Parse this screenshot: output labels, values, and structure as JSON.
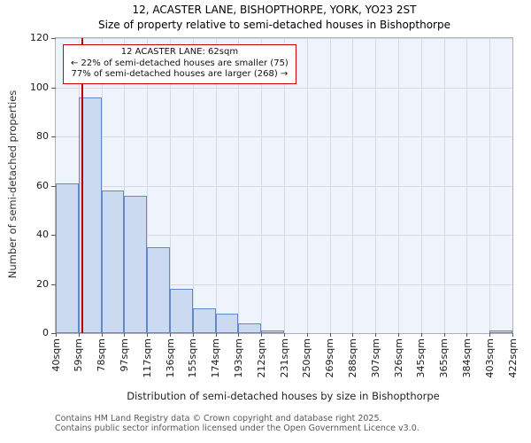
{
  "title": "12, ACASTER LANE, BISHOPTHORPE, YORK, YO23 2ST",
  "subtitle": "Size of property relative to semi-detached houses in Bishopthorpe",
  "annotation": {
    "line1": "12 ACASTER LANE: 62sqm",
    "line2": "← 22% of semi-detached houses are smaller (75)",
    "line3": "77% of semi-detached houses are larger (268) →"
  },
  "footer": {
    "line1": "Contains HM Land Registry data © Crown copyright and database right 2025.",
    "line2": "Contains public sector information licensed under the Open Government Licence v3.0."
  },
  "chart_data": {
    "type": "bar",
    "title": "12, ACASTER LANE, BISHOPTHORPE, YORK, YO23 2ST",
    "subtitle": "Size of property relative to semi-detached houses in Bishopthorpe",
    "xlabel": "Distribution of semi-detached houses by size in Bishopthorpe",
    "ylabel": "Number of semi-detached properties",
    "tick_labels": [
      "40sqm",
      "59sqm",
      "78sqm",
      "97sqm",
      "117sqm",
      "136sqm",
      "155sqm",
      "174sqm",
      "193sqm",
      "212sqm",
      "231sqm",
      "250sqm",
      "269sqm",
      "288sqm",
      "307sqm",
      "326sqm",
      "345sqm",
      "365sqm",
      "384sqm",
      "403sqm",
      "422sqm"
    ],
    "tick_values": [
      40,
      59,
      78,
      97,
      117,
      136,
      155,
      174,
      193,
      212,
      231,
      250,
      269,
      288,
      307,
      326,
      345,
      365,
      384,
      403,
      422
    ],
    "values": [
      61,
      96,
      58,
      56,
      35,
      18,
      10,
      8,
      4,
      1,
      0,
      0,
      0,
      0,
      0,
      0,
      0,
      0,
      0,
      1
    ],
    "yticks": [
      0,
      20,
      40,
      60,
      80,
      100,
      120
    ],
    "ylim": [
      0,
      120
    ],
    "grid": true,
    "legend": "none",
    "marker_value": 62,
    "marker_color": "#bb0000",
    "bar_fill": "#cbdaf1",
    "bar_border": "#6189c7",
    "plot_bg": "#eff3fb",
    "grid_color": "#d4dbe6"
  }
}
